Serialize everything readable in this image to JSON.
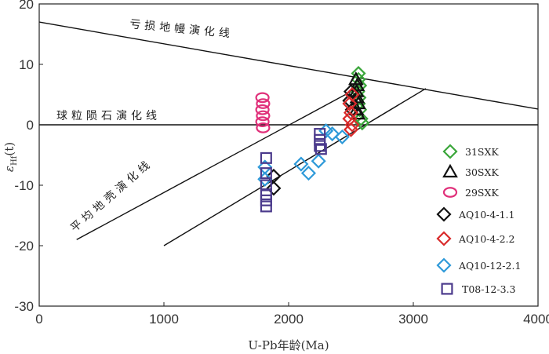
{
  "chart_data": {
    "type": "scatter",
    "xlabel": "U-Pb年龄(Ma)",
    "ylabel": "εHf(t)",
    "ylabel_main": "ε",
    "ylabel_sub": "Hf",
    "ylabel_tail": "(t)",
    "xlim": [
      0,
      4000
    ],
    "ylim": [
      -30,
      20
    ],
    "xticks": [
      0,
      1000,
      2000,
      3000,
      4000
    ],
    "yticks": [
      -30,
      -20,
      -10,
      0,
      10,
      20
    ],
    "grid": false,
    "legend_position": "right",
    "reference_lines": [
      {
        "name": "depleted-mantle",
        "label": "亏损地幔演化线",
        "points": [
          [
            0,
            17
          ],
          [
            4000,
            2.6
          ]
        ]
      },
      {
        "name": "chur",
        "label": "球粒陨石演化线",
        "points": [
          [
            0,
            0
          ],
          [
            4000,
            0
          ]
        ]
      },
      {
        "name": "average-crust",
        "label": "平均地壳演化线",
        "points": [
          [
            300,
            -19
          ],
          [
            2590,
            6.5
          ]
        ]
      },
      {
        "name": "crust-line-2",
        "label": "",
        "points": [
          [
            1000,
            -20
          ],
          [
            3100,
            6
          ]
        ]
      }
    ],
    "series": [
      {
        "name": "31SXK",
        "marker": "diamond",
        "color": "#3aa63a",
        "points": [
          [
            2560,
            8.5
          ],
          [
            2560,
            7.5
          ],
          [
            2570,
            6.5
          ],
          [
            2555,
            5.5
          ],
          [
            2565,
            4.5
          ],
          [
            2560,
            3.5
          ],
          [
            2570,
            2.5
          ],
          [
            2580,
            1.0
          ],
          [
            2590,
            0.3
          ]
        ]
      },
      {
        "name": "30SXK",
        "marker": "triangle",
        "color": "#111111",
        "points": [
          [
            2540,
            7.5
          ],
          [
            2550,
            6.5
          ],
          [
            2545,
            5.5
          ],
          [
            2550,
            4.5
          ],
          [
            2560,
            3.5
          ],
          [
            2545,
            2.5
          ],
          [
            2555,
            1.8
          ]
        ]
      },
      {
        "name": "29SXK",
        "marker": "circle",
        "color": "#e0307a",
        "points": [
          [
            1790,
            4.5
          ],
          [
            1795,
            3.5
          ],
          [
            1790,
            2.5
          ],
          [
            1795,
            1.5
          ],
          [
            1790,
            0.5
          ],
          [
            1795,
            -0.5
          ]
        ]
      },
      {
        "name": "AQ10-4-1.1",
        "marker": "diamond",
        "color": "#111111",
        "points": [
          [
            1880,
            -8.5
          ],
          [
            1880,
            -10.5
          ],
          [
            2500,
            5.5
          ],
          [
            2490,
            4.0
          ],
          [
            2510,
            2.5
          ]
        ]
      },
      {
        "name": "AQ10-4-2.2",
        "marker": "diamond",
        "color": "#d92b2b",
        "points": [
          [
            2510,
            5.0
          ],
          [
            2490,
            3.5
          ],
          [
            2500,
            2.0
          ],
          [
            2490,
            1.0
          ],
          [
            2510,
            0.0
          ],
          [
            2500,
            -0.8
          ]
        ]
      },
      {
        "name": "AQ10-12-2.1",
        "marker": "diamond",
        "color": "#2f9ad9",
        "points": [
          [
            1810,
            -7.0
          ],
          [
            1810,
            -9.0
          ],
          [
            2100,
            -6.5
          ],
          [
            2160,
            -8.0
          ],
          [
            2240,
            -6.0
          ],
          [
            2300,
            -1.0
          ],
          [
            2350,
            -1.5
          ],
          [
            2430,
            -2.0
          ]
        ]
      },
      {
        "name": "T08-12-3.3",
        "marker": "square",
        "color": "#4b3a8c",
        "points": [
          [
            1820,
            -5.5
          ],
          [
            1820,
            -8.0
          ],
          [
            1820,
            -10.0
          ],
          [
            1820,
            -11.5
          ],
          [
            1820,
            -12.5
          ],
          [
            1820,
            -13.5
          ],
          [
            2250,
            -1.5
          ],
          [
            2250,
            -2.5
          ],
          [
            2250,
            -3.5
          ],
          [
            2260,
            -4.0
          ]
        ]
      }
    ]
  }
}
